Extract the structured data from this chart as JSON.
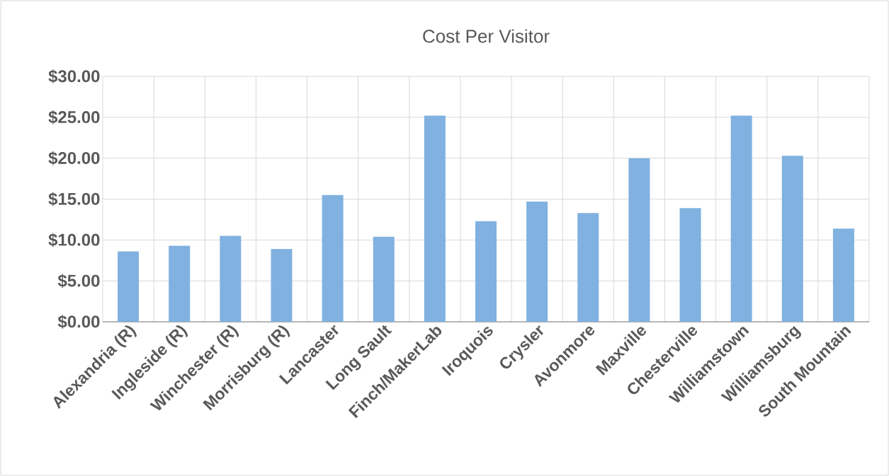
{
  "chart_data": {
    "type": "bar",
    "title": "Cost Per Visitor",
    "categories": [
      "Alexandria (R)",
      "Ingleside (R)",
      "Winchester (R)",
      "Morrisburg (R)",
      "Lancaster",
      "Long Sault",
      "Finch/MakerLab",
      "Iroquois",
      "Crysler",
      "Avonmore",
      "Maxville",
      "Chesterville",
      "Williamstown",
      "Williamsburg",
      "South Mountain"
    ],
    "values": [
      8.6,
      9.3,
      10.5,
      8.9,
      15.5,
      10.4,
      25.2,
      12.3,
      14.7,
      13.3,
      20.0,
      13.9,
      25.2,
      20.3,
      11.4
    ],
    "color": "#80b1e0",
    "ylim": [
      0,
      30
    ],
    "yticks": [
      {
        "value": 0,
        "label": "$0.00"
      },
      {
        "value": 5,
        "label": "$5.00"
      },
      {
        "value": 10,
        "label": "$10.00"
      },
      {
        "value": 15,
        "label": "$15.00"
      },
      {
        "value": 20,
        "label": "$20.00"
      },
      {
        "value": 25,
        "label": "$25.00"
      },
      {
        "value": 30,
        "label": "$30.00"
      }
    ],
    "grid": true
  }
}
